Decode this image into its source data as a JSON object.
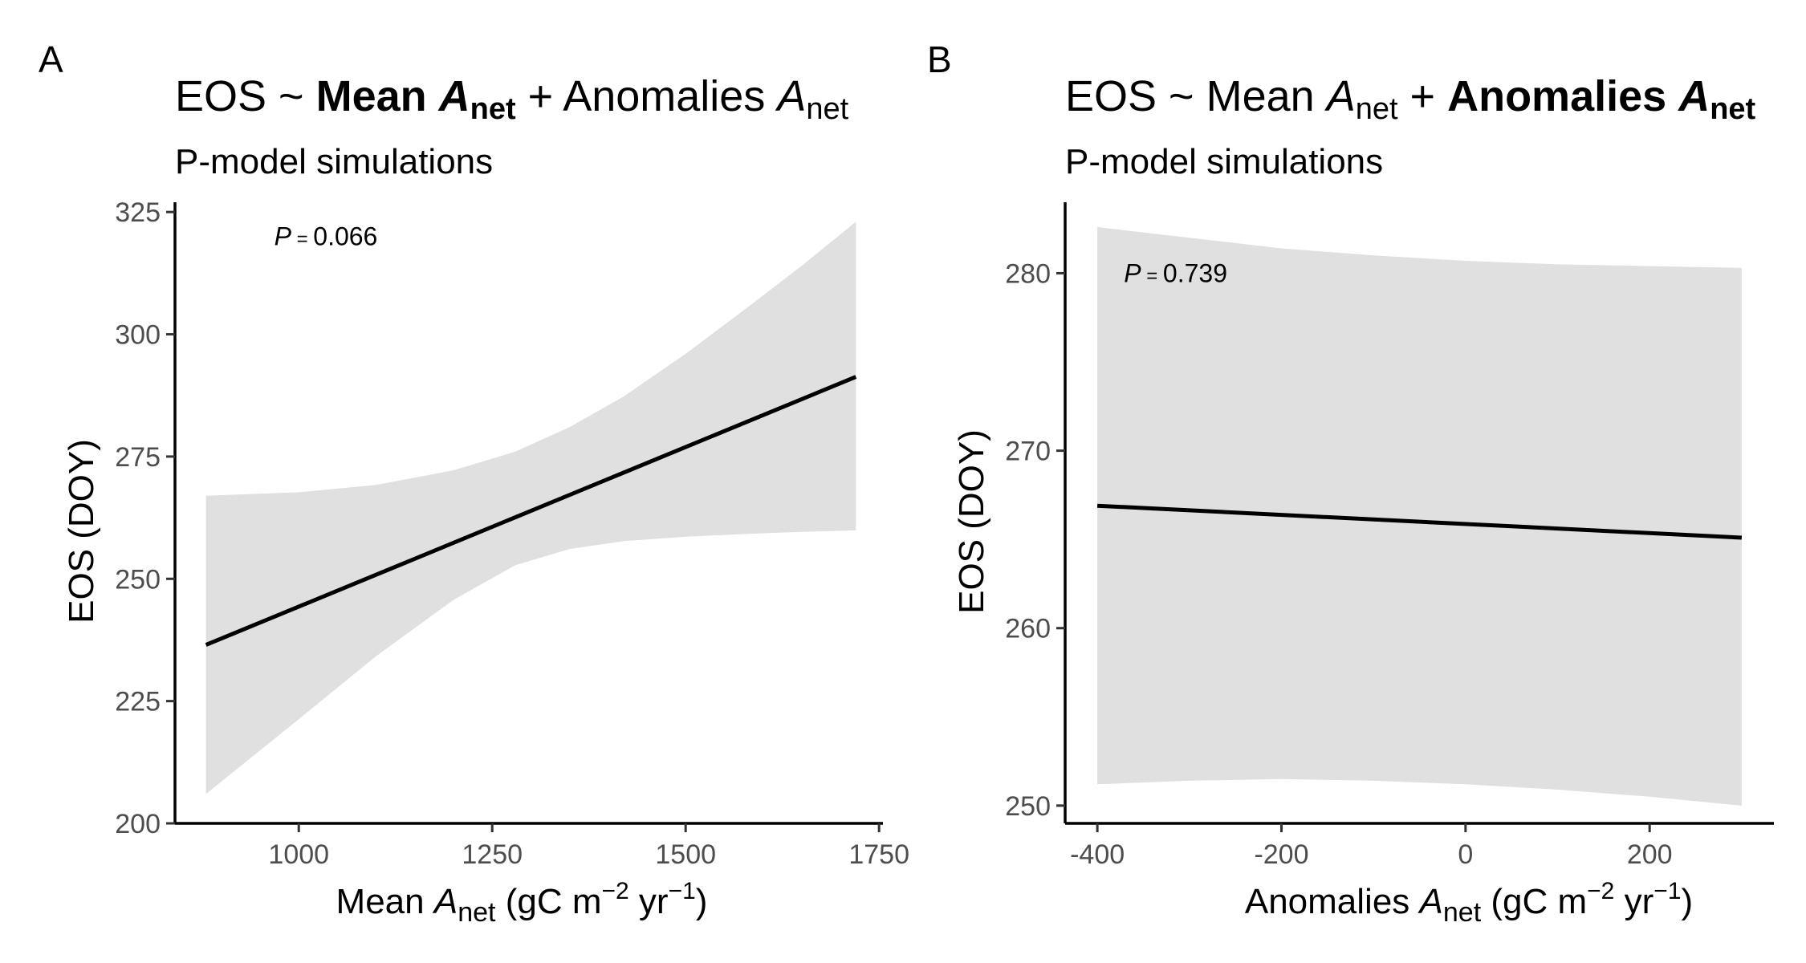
{
  "chart_data": [
    {
      "type": "line",
      "panel_tag": "A",
      "title": {
        "prefix": "EOS ~ ",
        "term1": "Mean ",
        "term1_var": "A",
        "term1_sub": "net",
        "plus": " + ",
        "term2": "Anomalies ",
        "term2_var": "A",
        "term2_sub": "net",
        "bold_term": 1
      },
      "subtitle": "P-model simulations",
      "xlabel": {
        "pre": "Mean ",
        "var": "A",
        "sub": "net",
        "unit_open": " (gC m",
        "exp1": "−2",
        "mid": " yr",
        "exp2": "−1",
        "close": ")"
      },
      "ylabel": "EOS (DOY)",
      "p_annotation": {
        "label": "P",
        "eq": " = ",
        "value": "0.066"
      },
      "xlim": [
        840,
        1755
      ],
      "ylim": [
        200,
        327
      ],
      "xticks": [
        1000,
        1250,
        1500,
        1750
      ],
      "xtick_labels": [
        "1000",
        "1250",
        "1500",
        "1750"
      ],
      "yticks": [
        200,
        225,
        250,
        275,
        300,
        325
      ],
      "ytick_labels": [
        "200",
        "225",
        "250",
        "275",
        "300",
        "325"
      ],
      "p_pos": [
        1035,
        320
      ],
      "series": [
        {
          "x": [
            880,
            1720
          ],
          "y": [
            236.5,
            291.3
          ]
        }
      ],
      "ribbon": {
        "x": [
          880,
          1000,
          1100,
          1200,
          1280,
          1350,
          1420,
          1500,
          1580,
          1650,
          1720
        ],
        "upper": [
          267,
          267.7,
          269.2,
          272.2,
          276,
          281,
          287.3,
          296,
          305.5,
          314,
          323
        ],
        "lower": [
          206,
          221.3,
          234.2,
          245.7,
          252.8,
          256.1,
          257.7,
          258.6,
          259.2,
          259.6,
          259.9
        ]
      },
      "colors": {
        "line": "#000000",
        "ribbon": "#e0e0e0",
        "axis": "#000000",
        "tick_text": "#4d4d4d"
      }
    },
    {
      "type": "line",
      "panel_tag": "B",
      "title": {
        "prefix": "EOS ~ ",
        "term1": "Mean ",
        "term1_var": "A",
        "term1_sub": "net",
        "plus": " + ",
        "term2": "Anomalies ",
        "term2_var": "A",
        "term2_sub": "net",
        "bold_term": 2
      },
      "subtitle": "P-model simulations",
      "xlabel": {
        "pre": "Anomalies ",
        "var": "A",
        "sub": "net",
        "unit_open": " (gC m",
        "exp1": "−2",
        "mid": " yr",
        "exp2": "−1",
        "close": ")"
      },
      "ylabel": "EOS (DOY)",
      "p_annotation": {
        "label": "P",
        "eq": " = ",
        "value": "0.739"
      },
      "xlim": [
        -435,
        335
      ],
      "ylim": [
        249,
        284
      ],
      "xticks": [
        -400,
        -200,
        0,
        200
      ],
      "xtick_labels": [
        "-400",
        "-200",
        "0",
        "200"
      ],
      "yticks": [
        250,
        260,
        270,
        280
      ],
      "ytick_labels": [
        "250",
        "260",
        "270",
        "280"
      ],
      "p_pos": [
        -315,
        280
      ],
      "series": [
        {
          "x": [
            -400,
            300
          ],
          "y": [
            266.9,
            265.1
          ]
        }
      ],
      "ribbon": {
        "x": [
          -400,
          -300,
          -200,
          -100,
          0,
          100,
          200,
          300
        ],
        "upper": [
          282.6,
          282.0,
          281.4,
          281.0,
          280.7,
          280.5,
          280.4,
          280.3
        ],
        "lower": [
          251.2,
          251.4,
          251.5,
          251.4,
          251.2,
          250.9,
          250.5,
          250.0
        ]
      },
      "colors": {
        "line": "#000000",
        "ribbon": "#e0e0e0",
        "axis": "#000000",
        "tick_text": "#4d4d4d"
      }
    }
  ]
}
